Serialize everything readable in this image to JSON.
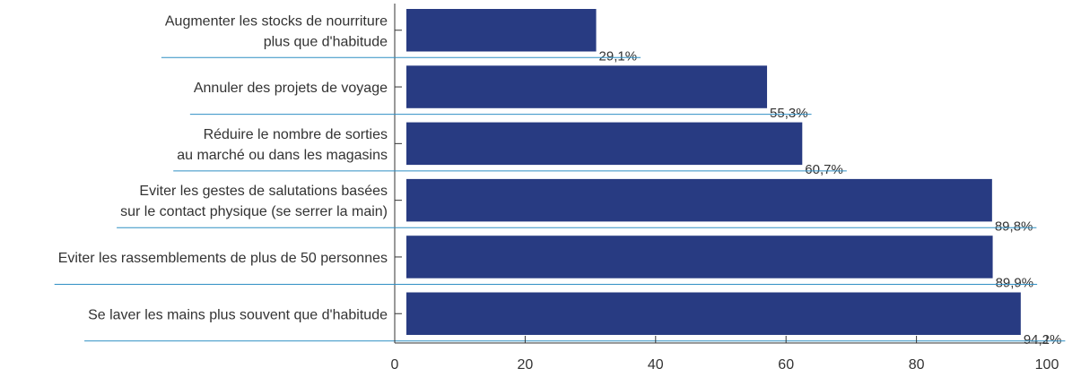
{
  "chart_data": {
    "type": "bar",
    "orientation": "horizontal",
    "categories": [
      [
        "Augmenter les stocks de nourriture",
        "plus que d'habitude"
      ],
      [
        "Annuler des projets de voyage"
      ],
      [
        "Réduire le nombre de sorties",
        "au marché ou dans les magasins"
      ],
      [
        "Eviter les gestes de salutations basées",
        "sur le contact physique (se serrer la main)"
      ],
      [
        "Eviter les rassemblements de plus de 50 personnes"
      ],
      [
        "Se laver les mains plus souvent que d'habitude"
      ]
    ],
    "values": [
      29.1,
      55.3,
      60.7,
      89.8,
      89.9,
      94.2
    ],
    "value_labels": [
      "29,1%",
      "55,3%",
      "60,7%",
      "89,8%",
      "89,9%",
      "94,2%"
    ],
    "xlim": [
      0,
      100
    ],
    "xticks": [
      0,
      20,
      40,
      60,
      80,
      100
    ],
    "xtick_labels": [
      "0",
      "20",
      "40",
      "60",
      "80",
      "100"
    ],
    "title": "",
    "xlabel": "",
    "ylabel": "",
    "grid": false,
    "legend": "none",
    "colors": {
      "bar": "#283b82",
      "separator": "#2f8fc4",
      "axis": "#333333"
    }
  }
}
